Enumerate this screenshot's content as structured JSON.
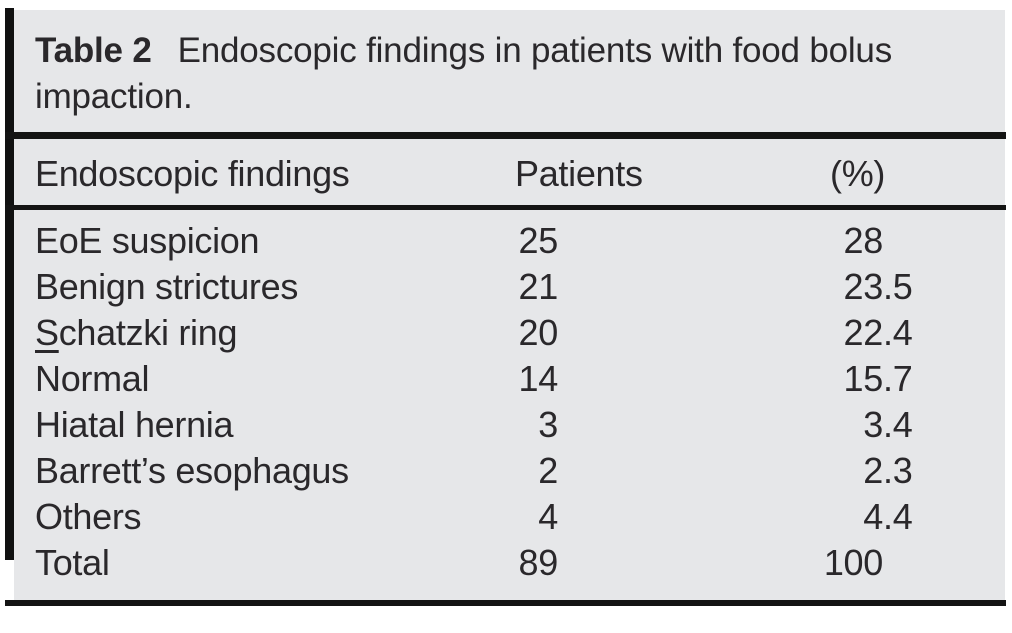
{
  "table": {
    "label": "Table 2",
    "caption": "Endoscopic findings in patients with food bolus impaction.",
    "columns": {
      "findings": "Endoscopic findings",
      "patients": "Patients",
      "percent": "(%)"
    },
    "rows": [
      {
        "finding": "EoE suspicion",
        "patients": "25",
        "percent": "28"
      },
      {
        "finding": "Benign strictures",
        "patients": "21",
        "percent": "23.5"
      },
      {
        "finding": "Schatzki ring",
        "patients": "20",
        "percent": "22.4"
      },
      {
        "finding": "Normal",
        "patients": "14",
        "percent": "15.7"
      },
      {
        "finding": "Hiatal hernia",
        "patients": "3",
        "percent": "3.4"
      },
      {
        "finding": "Barrett’s esophagus",
        "patients": "2",
        "percent": "2.3"
      },
      {
        "finding": "Others",
        "patients": "4",
        "percent": "4.4"
      },
      {
        "finding": "Total",
        "patients": "89",
        "percent": "100"
      }
    ],
    "colors": {
      "panel_bg": "#e6e7e9",
      "text": "#2a282b",
      "rule": "#141414"
    }
  }
}
